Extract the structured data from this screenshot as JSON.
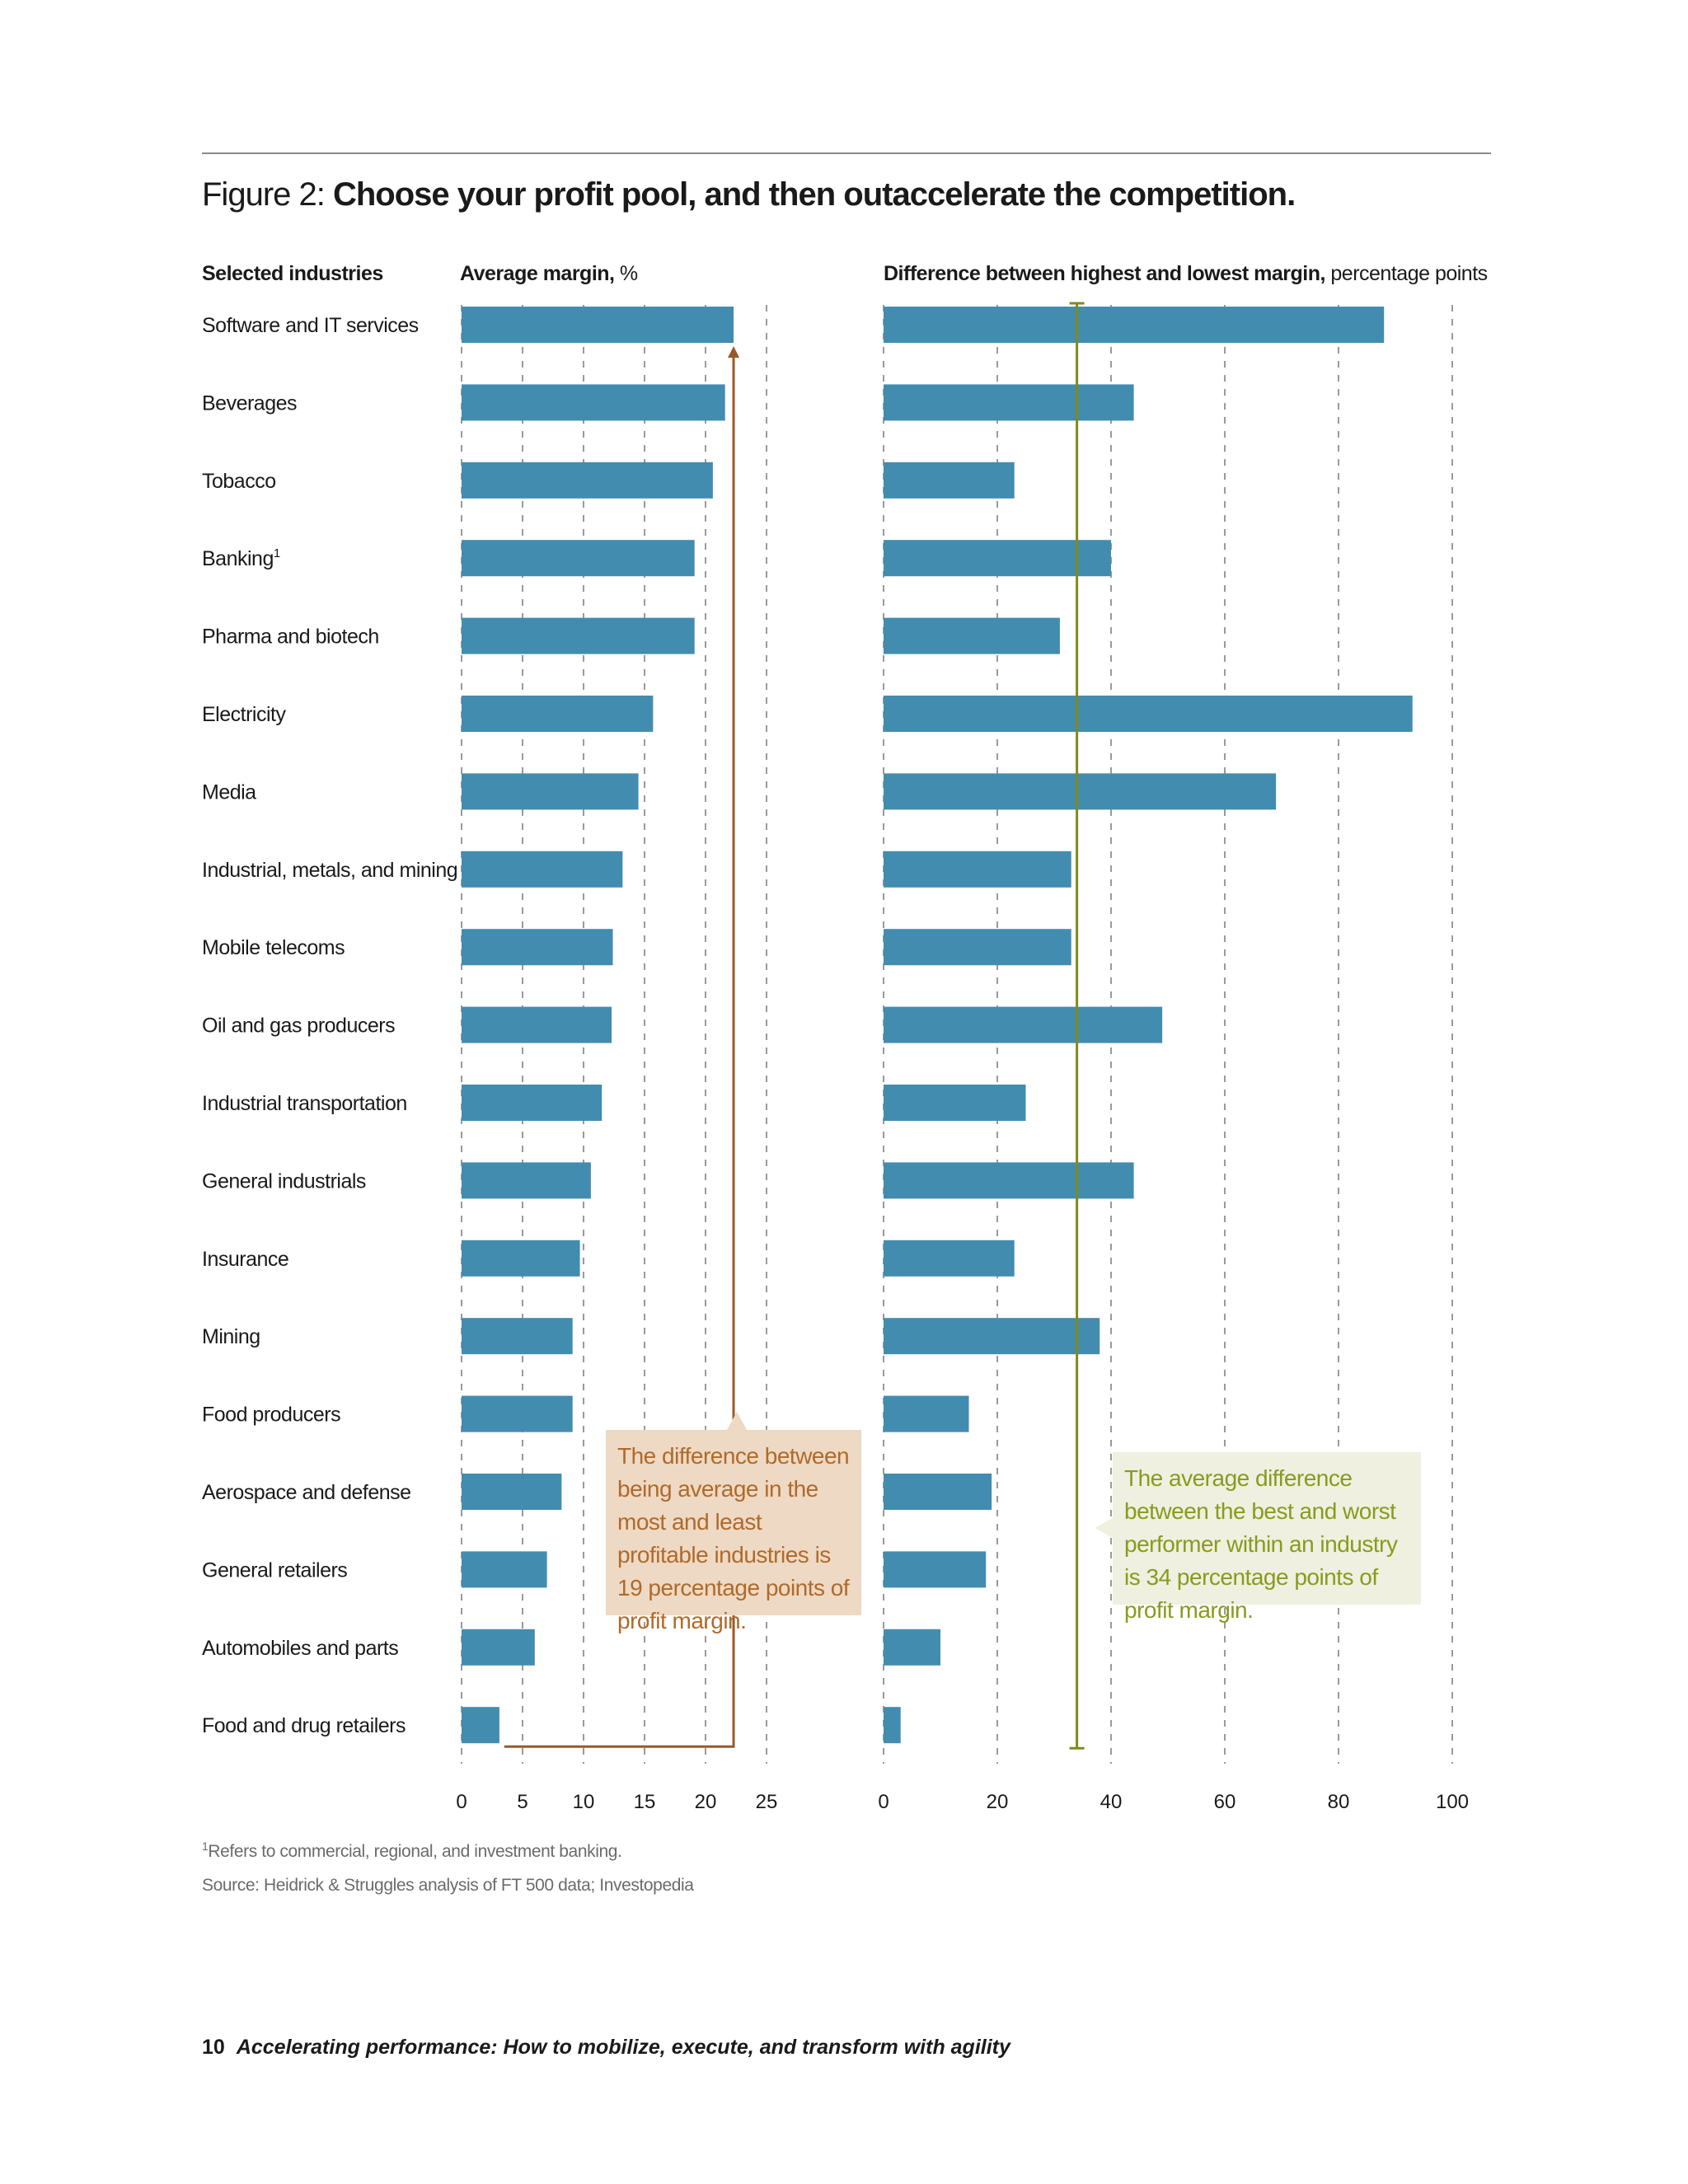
{
  "title": {
    "prefix": "Figure 2: ",
    "text": "Choose your profit pool, and then outaccelerate the competition."
  },
  "headers": {
    "industries": "Selected industries",
    "margin_bold": "Average margin,",
    "margin_unit": " %",
    "diff_bold": "Difference between highest and lowest margin,",
    "diff_unit": " percentage points"
  },
  "chart_data": [
    {
      "type": "bar",
      "orientation": "horizontal",
      "title": "Average margin, %",
      "categories": [
        "Software and IT services",
        "Beverages",
        "Tobacco",
        "Banking",
        "Pharma and biotech",
        "Electricity",
        "Media",
        "Industrial, metals, and mining",
        "Mobile telecoms",
        "Oil and gas producers",
        "Industrial transportation",
        "General industrials",
        "Insurance",
        "Mining",
        "Food producers",
        "Aerospace and defense",
        "General retailers",
        "Automobiles and parts",
        "Food and drug retailers"
      ],
      "category_footnotes": {
        "Banking": "1"
      },
      "values": [
        22.3,
        21.6,
        20.6,
        19.1,
        19.1,
        15.7,
        14.5,
        13.2,
        12.4,
        12.3,
        11.5,
        10.6,
        9.7,
        9.1,
        9.1,
        8.2,
        7.0,
        6.0,
        3.1
      ],
      "xlim": [
        0,
        25
      ],
      "xticks": [
        0,
        5,
        10,
        15,
        20,
        25
      ],
      "grid": true,
      "color": "#428cb0",
      "annotation": {
        "text": "The difference between being average in the most and least profitable industries is 19 percentage points of profit margin.",
        "color": "#9a5a28",
        "from": 3.5,
        "to": 22.3
      }
    },
    {
      "type": "bar",
      "orientation": "horizontal",
      "title": "Difference between highest and lowest margin, percentage points",
      "categories": [
        "Software and IT services",
        "Beverages",
        "Tobacco",
        "Banking",
        "Pharma and biotech",
        "Electricity",
        "Media",
        "Industrial, metals, and mining",
        "Mobile telecoms",
        "Oil and gas producers",
        "Industrial transportation",
        "General industrials",
        "Insurance",
        "Mining",
        "Food producers",
        "Aerospace and defense",
        "General retailers",
        "Automobiles and parts",
        "Food and drug retailers"
      ],
      "values": [
        88,
        44,
        23,
        40,
        31,
        93,
        69,
        33,
        33,
        49,
        25,
        44,
        23,
        38,
        15,
        19,
        18,
        10,
        3
      ],
      "xlim": [
        0,
        100
      ],
      "xticks": [
        0,
        20,
        40,
        60,
        80,
        100
      ],
      "grid": true,
      "color": "#428cb0",
      "reference_line": {
        "value": 34,
        "color": "#7f8a1d",
        "text": "The average difference between the best and worst performer within an industry is 34 percentage points of profit margin."
      }
    }
  ],
  "footnotes": {
    "note1_mark": "1",
    "note1": "Refers to commercial, regional, and investment banking.",
    "source": "Source: Heidrick & Struggles analysis of FT 500 data; Investopedia"
  },
  "page_footer": {
    "number": "10",
    "text": "Accelerating performance: How to mobilize, execute, and transform with agility"
  }
}
